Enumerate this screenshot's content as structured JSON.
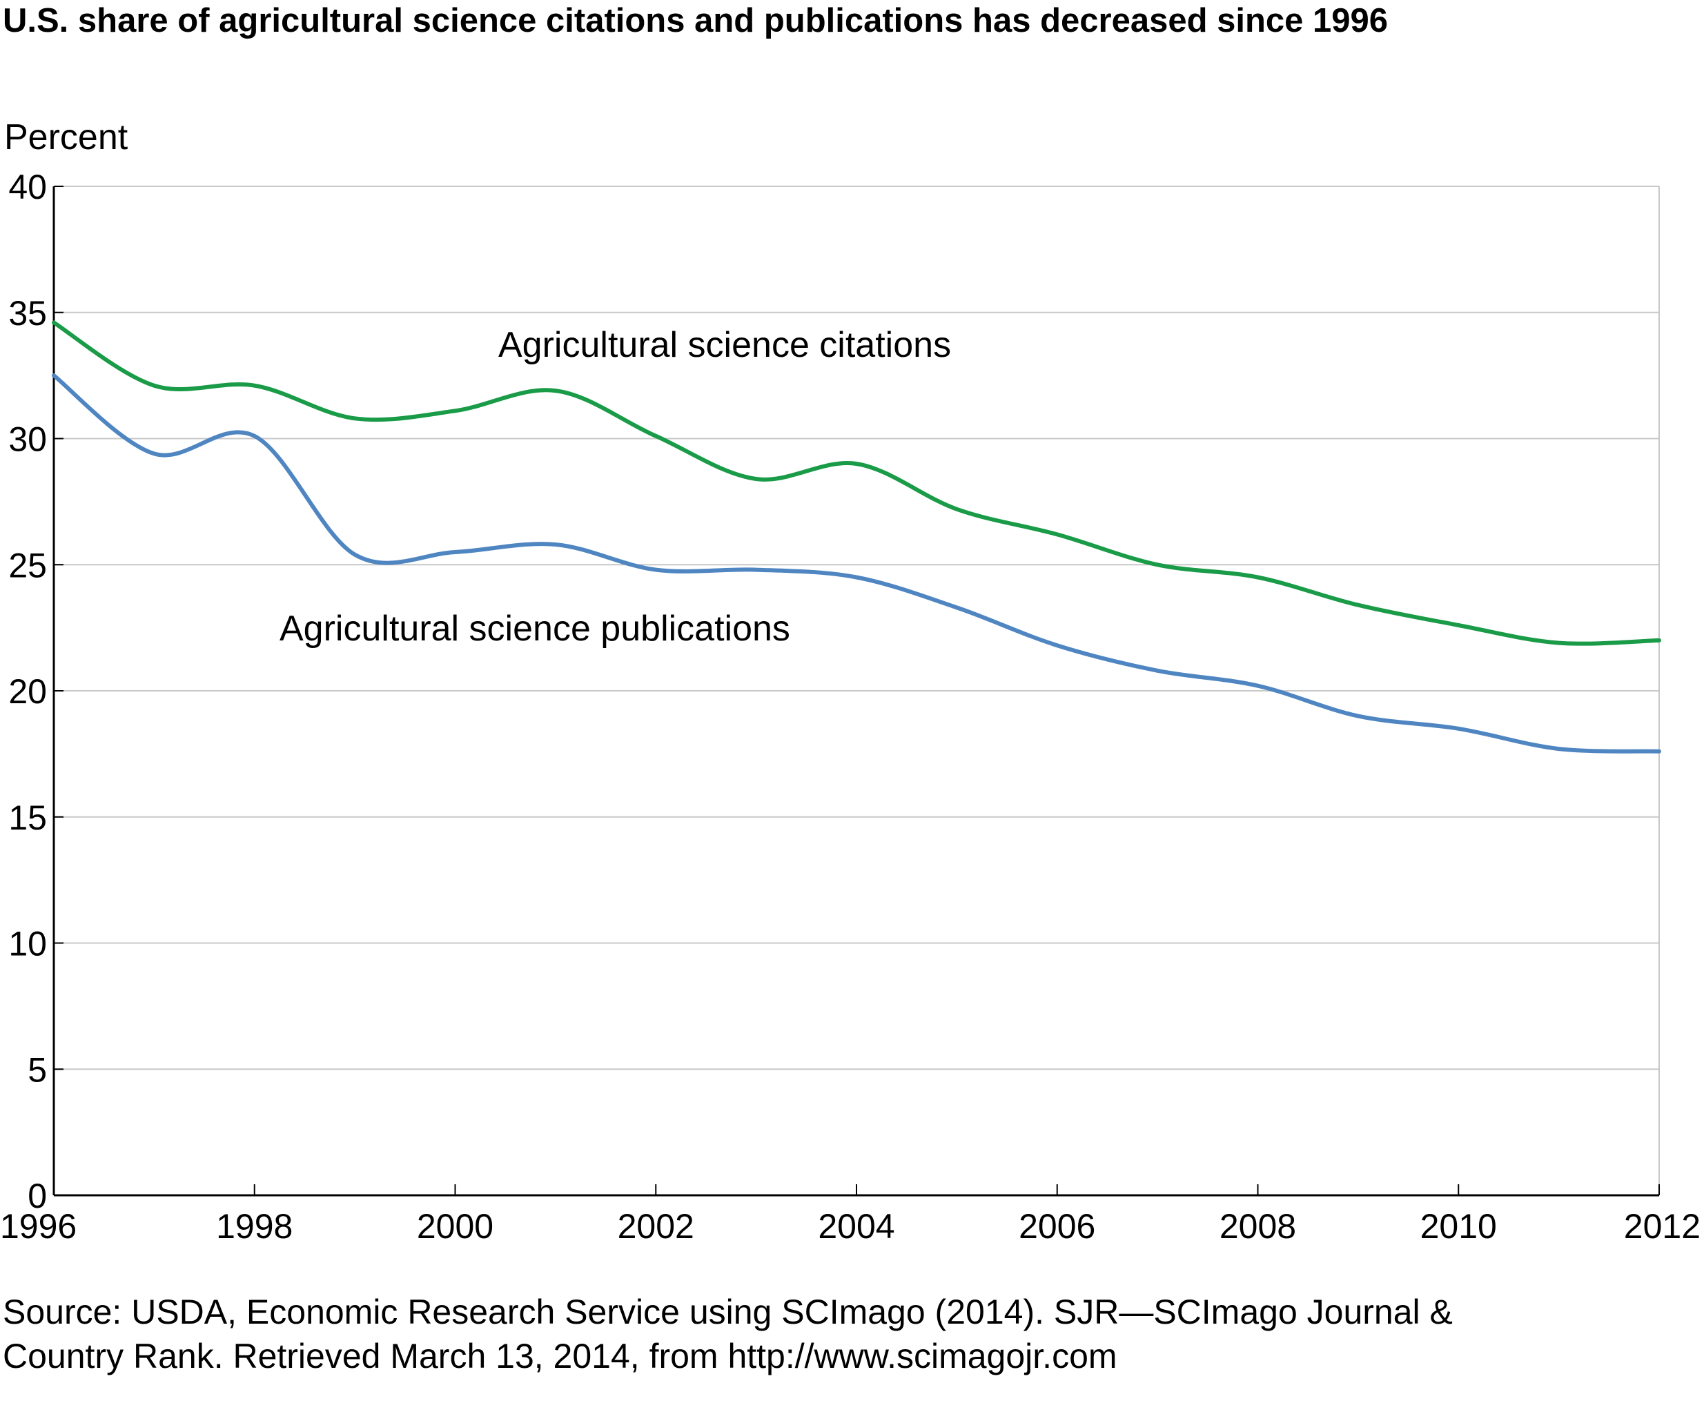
{
  "chart_data": {
    "type": "line",
    "title": "U.S. share of agricultural science citations and publications has decreased since 1996",
    "ylabel": "Percent",
    "xlabel": "",
    "ylim": [
      0,
      40
    ],
    "xlim": [
      1996,
      2012
    ],
    "yticks": [
      "0",
      "5",
      "10",
      "15",
      "20",
      "25",
      "30",
      "35",
      "40"
    ],
    "xticks": [
      "1996",
      "1998",
      "2000",
      "2002",
      "2004",
      "2006",
      "2008",
      "2010",
      "2012"
    ],
    "grid": true,
    "x": [
      1996,
      1997,
      1998,
      1999,
      2000,
      2001,
      2002,
      2003,
      2004,
      2005,
      2006,
      2007,
      2008,
      2009,
      2010,
      2011,
      2012
    ],
    "series": [
      {
        "name": "Agricultural science citations",
        "color": "#1a9b48",
        "values": [
          34.6,
          32.1,
          32.1,
          30.8,
          31.1,
          31.9,
          30.1,
          28.4,
          29.0,
          27.2,
          26.2,
          25.0,
          24.5,
          23.4,
          22.6,
          21.9,
          22.0
        ]
      },
      {
        "name": "Agricultural science publications",
        "color": "#4f86c2",
        "values": [
          32.5,
          29.4,
          30.1,
          25.4,
          25.5,
          25.8,
          24.8,
          24.8,
          24.5,
          23.3,
          21.8,
          20.8,
          20.2,
          19.0,
          18.5,
          17.7,
          17.6
        ]
      }
    ]
  },
  "source": {
    "line1": "Source: USDA, Economic Research Service using SCImago (2014). SJR—SCImago Journal &",
    "line2": "Country Rank. Retrieved March 13, 2014, from http://www.scimagojr.com"
  }
}
